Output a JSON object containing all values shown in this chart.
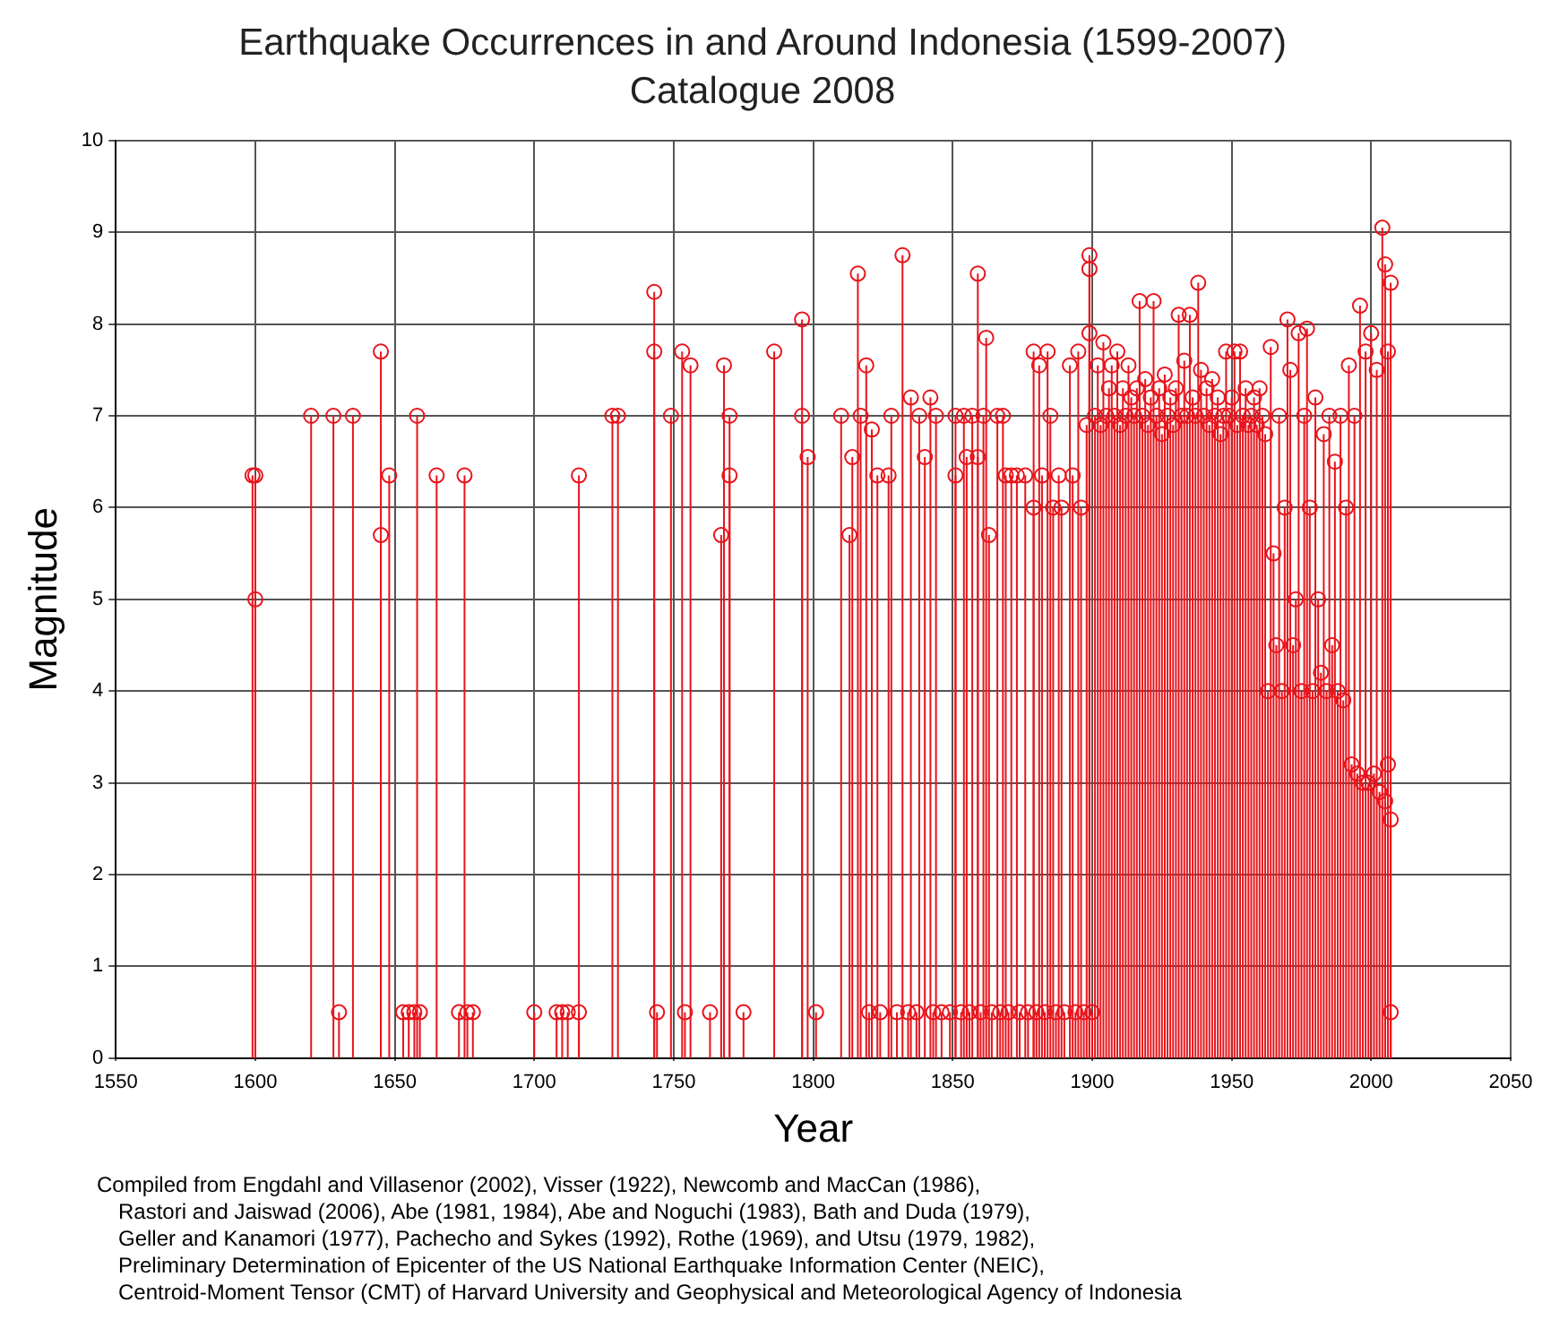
{
  "chart_data": {
    "type": "lollipop",
    "title": "Earthquake Occurrences in and Around Indonesia (1599-2007)",
    "subtitle": "Catalogue 2008",
    "xlabel": "Year",
    "ylabel": "Magnitude",
    "xlim": [
      1550,
      2050
    ],
    "xticks": [
      1550,
      1600,
      1650,
      1700,
      1750,
      1800,
      1850,
      1900,
      1950,
      2000,
      2050
    ],
    "ylim": [
      0,
      10
    ],
    "yticks": [
      0,
      1,
      2,
      3,
      4,
      5,
      6,
      7,
      8,
      9,
      10
    ],
    "grid": true,
    "marker": "circle",
    "series": [
      {
        "color": "#e8141b",
        "x": [
          1599,
          1600,
          1600,
          1620,
          1628,
          1630,
          1635,
          1645,
          1645,
          1648,
          1653,
          1655,
          1657,
          1658,
          1659,
          1665,
          1673,
          1675,
          1676,
          1678,
          1700,
          1708,
          1710,
          1712,
          1716,
          1716,
          1728,
          1730,
          1743,
          1743,
          1744,
          1749,
          1753,
          1754,
          1756,
          1763,
          1767,
          1768,
          1770,
          1770,
          1775,
          1786,
          1796,
          1796,
          1798,
          1801,
          1810,
          1813,
          1814,
          1816,
          1817,
          1819,
          1820,
          1821,
          1823,
          1824,
          1827,
          1828,
          1830,
          1832,
          1834,
          1835,
          1837,
          1838,
          1840,
          1842,
          1843,
          1844,
          1846,
          1849,
          1851,
          1851,
          1853,
          1854,
          1855,
          1856,
          1857,
          1859,
          1859,
          1860,
          1861,
          1862,
          1863,
          1864,
          1866,
          1867,
          1868,
          1869,
          1870,
          1871,
          1873,
          1874,
          1876,
          1877,
          1879,
          1879,
          1880,
          1881,
          1882,
          1883,
          1884,
          1885,
          1886,
          1887,
          1888,
          1889,
          1890,
          1892,
          1893,
          1894,
          1895,
          1896,
          1897,
          1898,
          1899,
          1899,
          1899,
          1900,
          1901,
          1902,
          1903,
          1904,
          1905,
          1906,
          1907,
          1908,
          1909,
          1910,
          1911,
          1912,
          1913,
          1914,
          1915,
          1916,
          1917,
          1918,
          1919,
          1920,
          1921,
          1922,
          1923,
          1924,
          1925,
          1926,
          1927,
          1928,
          1929,
          1930,
          1931,
          1932,
          1933,
          1934,
          1935,
          1936,
          1937,
          1938,
          1939,
          1940,
          1941,
          1942,
          1943,
          1944,
          1945,
          1946,
          1947,
          1948,
          1949,
          1950,
          1951,
          1952,
          1953,
          1954,
          1955,
          1956,
          1957,
          1958,
          1959,
          1960,
          1961,
          1962,
          1963,
          1964,
          1965,
          1966,
          1967,
          1968,
          1969,
          1970,
          1971,
          1972,
          1973,
          1974,
          1975,
          1976,
          1977,
          1978,
          1979,
          1980,
          1981,
          1982,
          1983,
          1984,
          1985,
          1986,
          1987,
          1988,
          1989,
          1990,
          1991,
          1992,
          1993,
          1994,
          1995,
          1996,
          1997,
          1998,
          1999,
          2000,
          2001,
          2002,
          2003,
          2004,
          2005,
          2005,
          2006,
          2006,
          2007,
          2007,
          2007
        ],
        "values": [
          6.35,
          6.35,
          5.0,
          7.0,
          7.0,
          0.5,
          7.0,
          7.7,
          5.7,
          6.35,
          0.5,
          0.5,
          0.5,
          7.0,
          0.5,
          6.35,
          0.5,
          6.35,
          0.5,
          0.5,
          0.5,
          0.5,
          0.5,
          0.5,
          6.35,
          0.5,
          7.0,
          7.0,
          8.35,
          7.7,
          0.5,
          7.0,
          7.7,
          0.5,
          7.55,
          0.5,
          5.7,
          7.55,
          7.0,
          6.35,
          0.5,
          7.7,
          8.05,
          7.0,
          6.55,
          0.5,
          7.0,
          5.7,
          6.55,
          8.55,
          7.0,
          7.55,
          0.5,
          6.85,
          6.35,
          0.5,
          6.35,
          7.0,
          0.5,
          8.75,
          0.5,
          7.2,
          0.5,
          7.0,
          6.55,
          7.2,
          0.5,
          7.0,
          0.5,
          0.5,
          7.0,
          6.35,
          0.5,
          7.0,
          6.55,
          0.5,
          7.0,
          8.55,
          6.55,
          0.5,
          7.0,
          7.85,
          5.7,
          0.5,
          7.0,
          0.5,
          7.0,
          6.35,
          0.5,
          6.35,
          6.35,
          0.5,
          6.35,
          0.5,
          7.7,
          6.0,
          0.5,
          7.55,
          6.35,
          0.5,
          7.7,
          7.0,
          6.0,
          0.5,
          6.35,
          6.0,
          0.5,
          7.55,
          6.35,
          0.5,
          7.7,
          6.0,
          0.5,
          6.9,
          8.75,
          8.6,
          7.9,
          0.5,
          7.0,
          7.55,
          6.9,
          7.8,
          7.0,
          7.3,
          7.55,
          7.0,
          7.7,
          6.9,
          7.3,
          7.0,
          7.55,
          7.2,
          7.0,
          7.3,
          8.25,
          7.0,
          7.4,
          6.9,
          7.2,
          8.25,
          7.0,
          7.3,
          6.8,
          7.45,
          7.0,
          7.2,
          6.9,
          7.3,
          8.1,
          7.0,
          7.6,
          7.0,
          8.1,
          7.2,
          7.0,
          8.45,
          7.5,
          7.0,
          7.3,
          6.9,
          7.4,
          7.0,
          7.2,
          6.8,
          7.0,
          7.7,
          7.0,
          7.2,
          7.7,
          6.9,
          7.7,
          7.0,
          7.3,
          6.9,
          7.0,
          7.2,
          6.9,
          7.3,
          7.0,
          6.8,
          4.0,
          7.75,
          5.5,
          4.5,
          7.0,
          4.0,
          6.0,
          8.05,
          7.5,
          4.5,
          5.0,
          7.9,
          4.0,
          7.0,
          7.95,
          6.0,
          4.0,
          7.2,
          5.0,
          4.2,
          6.8,
          4.0,
          7.0,
          4.5,
          6.5,
          4.0,
          7.0,
          3.9,
          6.0,
          7.55,
          3.2,
          7.0,
          3.1,
          8.2,
          3.0,
          7.7,
          3.0,
          7.9,
          3.1,
          7.5,
          2.9,
          9.05,
          8.65,
          2.8,
          7.7,
          3.2,
          8.45,
          2.6,
          0.5
        ]
      }
    ],
    "annotations": [
      "Compiled from Engdahl and Villasenor (2002), Visser (1922), Newcomb and MacCan (1986),",
      "Rastori and Jaiswad (2006), Abe (1981, 1984), Abe and Noguchi (1983), Bath and Duda (1979),",
      "Geller and Kanamori (1977), Pachecho and Sykes (1992), Rothe (1969), and Utsu (1979, 1982),",
      "Preliminary Determination of Epicenter of the US National Earthquake Information Center (NEIC),",
      "Centroid-Moment Tensor (CMT) of Harvard University and Geophysical and Meteorological Agency of Indonesia"
    ]
  }
}
